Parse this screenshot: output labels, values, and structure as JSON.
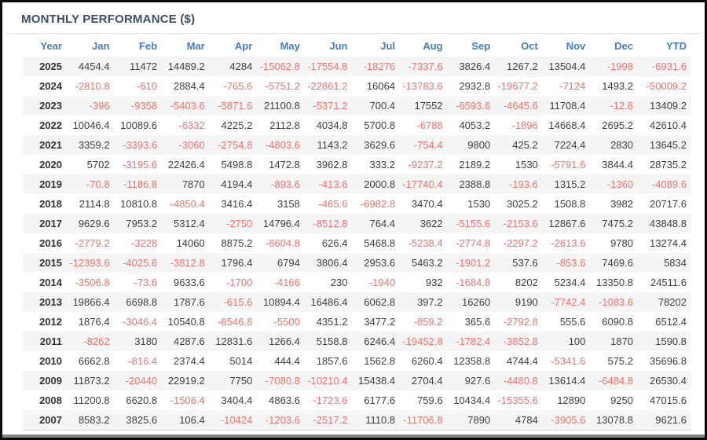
{
  "title": "MONTHLY PERFORMANCE ($)",
  "colors": {
    "title_text": "#3d5063",
    "header_text": "#4a7cba",
    "positive_text": "#3f3f3f",
    "negative_text": "#f8716b",
    "row_stripe": "#f5f5f6",
    "frame_border": "#0b0b0b"
  },
  "chart_data": {
    "type": "table",
    "title": "MONTHLY PERFORMANCE ($)",
    "columns": [
      "Year",
      "Jan",
      "Feb",
      "Mar",
      "Apr",
      "May",
      "Jun",
      "Jul",
      "Aug",
      "Sep",
      "Oct",
      "Nov",
      "Dec",
      "YTD"
    ],
    "rows": [
      [
        "2025",
        "4454.4",
        "11472",
        "14489.2",
        "4284",
        "-15062.8",
        "-17554.8",
        "-18276",
        "-7337.6",
        "3826.4",
        "1267.2",
        "13504.4",
        "-1998",
        "-6931.6"
      ],
      [
        "2024",
        "-2810.8",
        "-610",
        "2884.4",
        "-765.6",
        "-5751.2",
        "-22861.2",
        "16064",
        "-13783.6",
        "2932.8",
        "-19677.2",
        "-7124",
        "1493.2",
        "-50009.2"
      ],
      [
        "2023",
        "-396",
        "-9358",
        "-5403.6",
        "-5871.6",
        "21100.8",
        "-5371.2",
        "700.4",
        "17552",
        "-6593.6",
        "-4645.6",
        "11708.4",
        "-12.8",
        "13409.2"
      ],
      [
        "2022",
        "10046.4",
        "10089.6",
        "-6332",
        "4225.2",
        "2112.8",
        "4034.8",
        "5700.8",
        "-6788",
        "4053.2",
        "-1896",
        "14668.4",
        "2695.2",
        "42610.4"
      ],
      [
        "2021",
        "3359.2",
        "-3393.6",
        "-3060",
        "-2754.8",
        "-4803.6",
        "1143.2",
        "3629.6",
        "-754.4",
        "9800",
        "425.2",
        "7224.4",
        "2830",
        "13645.2"
      ],
      [
        "2020",
        "5702",
        "-3195.6",
        "22426.4",
        "5498.8",
        "1472.8",
        "3962.8",
        "333.2",
        "-9237.2",
        "2189.2",
        "1530",
        "-5791.6",
        "3844.4",
        "28735.2"
      ],
      [
        "2019",
        "-70.8",
        "-1186.8",
        "7870",
        "4194.4",
        "-893.6",
        "-413.6",
        "2000.8",
        "-17740.4",
        "2388.8",
        "-193.6",
        "1315.2",
        "-1360",
        "-4089.6"
      ],
      [
        "2018",
        "2114.8",
        "10810.8",
        "-4850.4",
        "3416.4",
        "3158",
        "-465.6",
        "-6982.8",
        "3470.4",
        "1530",
        "3025.2",
        "1508.8",
        "3982",
        "20717.6"
      ],
      [
        "2017",
        "9629.6",
        "7953.2",
        "5312.4",
        "-2750",
        "14796.4",
        "-8512.8",
        "764.4",
        "3622",
        "-5155.6",
        "-2153.6",
        "12867.6",
        "7475.2",
        "43848.8"
      ],
      [
        "2016",
        "-2779.2",
        "-3228",
        "14060",
        "8875.2",
        "-6604.8",
        "626.4",
        "5468.8",
        "-5238.4",
        "-2774.8",
        "-2297.2",
        "-2613.6",
        "9780",
        "13274.4"
      ],
      [
        "2015",
        "-12393.6",
        "-4025.6",
        "-3812.8",
        "1796.4",
        "6794",
        "3806.4",
        "2953.6",
        "5463.2",
        "-1901.2",
        "537.6",
        "-853.6",
        "7469.6",
        "5834"
      ],
      [
        "2014",
        "-3506.8",
        "-73.6",
        "9633.6",
        "-1700",
        "-4166",
        "230",
        "-1940",
        "932",
        "-1684.8",
        "8202",
        "5234.4",
        "13350.8",
        "24511.6"
      ],
      [
        "2013",
        "19866.4",
        "6698.8",
        "1787.6",
        "-615.6",
        "10894.4",
        "16486.4",
        "6062.8",
        "397.2",
        "16260",
        "9190",
        "-7742.4",
        "-1083.6",
        "78202"
      ],
      [
        "2012",
        "1876.4",
        "-3046.4",
        "10540.8",
        "-8546.8",
        "-5500",
        "4351.2",
        "3477.2",
        "-859.2",
        "365.6",
        "-2792.8",
        "555.6",
        "6090.8",
        "6512.4"
      ],
      [
        "2011",
        "-8262",
        "3180",
        "4287.6",
        "12831.6",
        "1266.4",
        "5158.8",
        "6246.4",
        "-19452.8",
        "-1782.4",
        "-3852.8",
        "100",
        "1870",
        "1590.8"
      ],
      [
        "2010",
        "6662.8",
        "-816.4",
        "2374.4",
        "5014",
        "444.4",
        "1857.6",
        "1562.8",
        "6260.4",
        "12358.8",
        "4744.4",
        "-5341.6",
        "575.2",
        "35696.8"
      ],
      [
        "2009",
        "11873.2",
        "-20440",
        "22919.2",
        "7750",
        "-7080.8",
        "-10210.4",
        "15438.4",
        "2704.4",
        "927.6",
        "-4480.8",
        "13614.4",
        "-6484.8",
        "26530.4"
      ],
      [
        "2008",
        "11200.8",
        "6620.8",
        "-1506.4",
        "3404.4",
        "4863.6",
        "-1723.6",
        "6177.6",
        "759.6",
        "10434.4",
        "-15355.6",
        "12890",
        "9250",
        "47015.6"
      ],
      [
        "2007",
        "8583.2",
        "3825.6",
        "106.4",
        "-10424",
        "-1203.6",
        "-2517.2",
        "1110.8",
        "-11706.8",
        "7890",
        "4784",
        "-3905.6",
        "13078.8",
        "9621.6"
      ]
    ]
  }
}
